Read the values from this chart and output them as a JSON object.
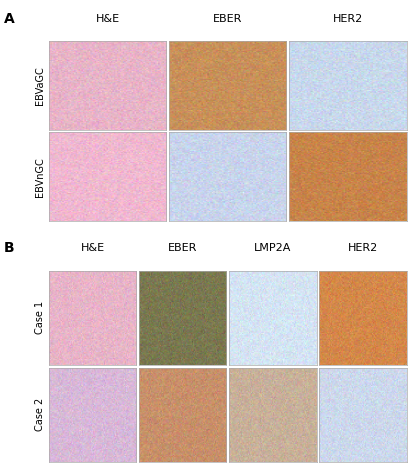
{
  "panel_A_label": "A",
  "panel_B_label": "B",
  "panel_A_col_labels": [
    "H&E",
    "EBER",
    "HER2"
  ],
  "panel_A_row_labels": [
    "EBVaGC",
    "EBVnGC"
  ],
  "panel_B_col_labels": [
    "H&E",
    "EBER",
    "LMP2A",
    "HER2"
  ],
  "panel_B_row_labels": [
    "Case 1",
    "Case 2"
  ],
  "panel_A_colors": [
    [
      "#e8b4c8",
      "#c8905a",
      "#c8d8ec"
    ],
    [
      "#f0b8d0",
      "#c8d4ec",
      "#c8844a"
    ]
  ],
  "panel_B_colors": [
    [
      "#e8b4c8",
      "#7a7850",
      "#d4e4f4",
      "#d4884a"
    ],
    [
      "#d8b8d8",
      "#c8906a",
      "#c8b09a",
      "#ccd8ec"
    ]
  ],
  "background_color": "#ffffff",
  "panel_label_fontsize": 10,
  "row_label_fontsize": 7,
  "col_label_fontsize": 8,
  "fig_width": 4.12,
  "fig_height": 4.68,
  "dpi": 100
}
